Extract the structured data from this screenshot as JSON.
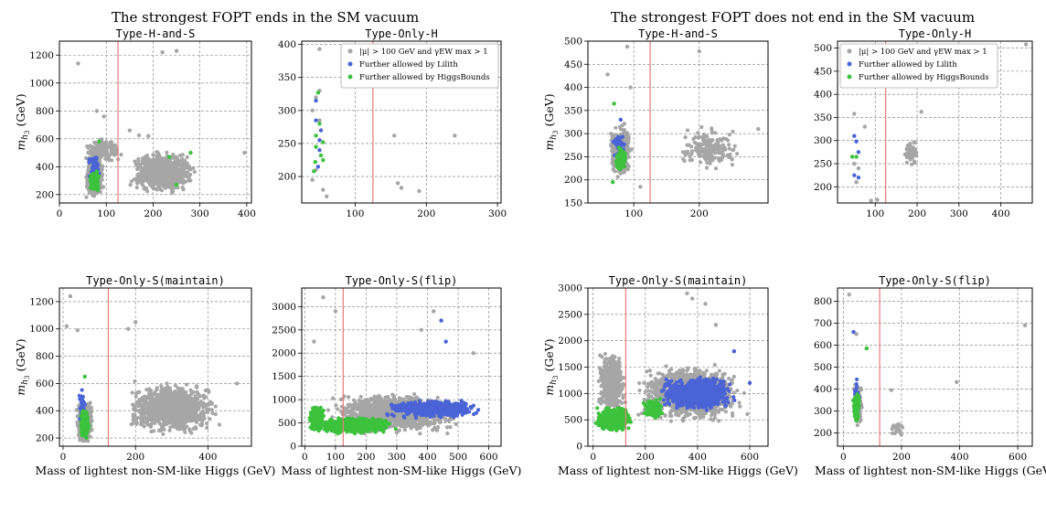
{
  "figure": {
    "left_title": "The strongest FOPT ends in the SM vacuum",
    "right_title": "The strongest FOPT does not end in the SM vacuum",
    "xlabel": "Mass of lightest non-SM-like Higgs (GeV)",
    "ylabel_main": "m",
    "ylabel_sub": "h",
    "ylabel_sub2": "3",
    "ylabel_unit": " (GeV)"
  },
  "legend_items": [
    {
      "text": "|μ| > 100 GeV and γEW max > 1",
      "color": "#a6a6a6"
    },
    {
      "text": "Further allowed by Lilith",
      "color": "#4a63d6"
    },
    {
      "text": "Further allowed by HiggsBounds",
      "color": "#3cc23c"
    }
  ],
  "colors": {
    "all": "#a6a6a6",
    "lilith": "#4a63d6",
    "hb": "#3cc23c",
    "sm_line": "#e87a7a",
    "grid": "#7a7a7a"
  },
  "chart_data": [
    {
      "type": "scatter",
      "panel": "L-TL",
      "title": "Type-H-and-S",
      "xlim": [
        0,
        410
      ],
      "ylim": [
        140,
        1300
      ],
      "xticks": [
        0,
        100,
        200,
        300,
        400
      ],
      "yticks": [
        200,
        400,
        600,
        800,
        1000,
        1200
      ],
      "sm_line_x": 125,
      "legend": "",
      "clusters": [
        {
          "s": "all",
          "n": 520,
          "cx": 75,
          "cy": 330,
          "rx": 22,
          "ry": 180
        },
        {
          "s": "all",
          "n": 900,
          "cx": 220,
          "cy": 360,
          "rx": 80,
          "ry": 170
        },
        {
          "s": "all",
          "n": 160,
          "cx": 90,
          "cy": 520,
          "rx": 50,
          "ry": 110
        },
        {
          "s": "lilith",
          "n": 55,
          "cx": 75,
          "cy": 380,
          "rx": 14,
          "ry": 140
        },
        {
          "s": "hb",
          "n": 230,
          "cx": 75,
          "cy": 300,
          "rx": 12,
          "ry": 85
        }
      ],
      "points": [
        {
          "x": 40,
          "y": 1140,
          "s": "all"
        },
        {
          "x": 220,
          "y": 1220,
          "s": "all"
        },
        {
          "x": 250,
          "y": 1230,
          "s": "all"
        },
        {
          "x": 80,
          "y": 800,
          "s": "all"
        },
        {
          "x": 95,
          "y": 760,
          "s": "all"
        },
        {
          "x": 190,
          "y": 620,
          "s": "all"
        },
        {
          "x": 170,
          "y": 625,
          "s": "all"
        },
        {
          "x": 150,
          "y": 660,
          "s": "all"
        },
        {
          "x": 85,
          "y": 580,
          "s": "hb"
        },
        {
          "x": 235,
          "y": 470,
          "s": "hb"
        },
        {
          "x": 280,
          "y": 500,
          "s": "hb"
        },
        {
          "x": 250,
          "y": 270,
          "s": "hb"
        },
        {
          "x": 395,
          "y": 500,
          "s": "all"
        }
      ]
    },
    {
      "type": "scatter",
      "panel": "L-TR",
      "title": "Type-Only-H",
      "xlim": [
        25,
        305
      ],
      "ylim": [
        160,
        405
      ],
      "xticks": [
        100,
        200,
        300
      ],
      "yticks": [
        200,
        250,
        300,
        350,
        400
      ],
      "sm_line_x": 125,
      "legend": "top-right",
      "clusters": [],
      "points": [
        {
          "x": 50,
          "y": 393,
          "s": "all"
        },
        {
          "x": 40,
          "y": 195,
          "s": "all"
        },
        {
          "x": 45,
          "y": 210,
          "s": "all"
        },
        {
          "x": 55,
          "y": 180,
          "s": "all"
        },
        {
          "x": 60,
          "y": 170,
          "s": "all"
        },
        {
          "x": 40,
          "y": 300,
          "s": "all"
        },
        {
          "x": 45,
          "y": 320,
          "s": "all"
        },
        {
          "x": 50,
          "y": 330,
          "s": "all"
        },
        {
          "x": 50,
          "y": 285,
          "s": "all"
        },
        {
          "x": 155,
          "y": 262,
          "s": "all"
        },
        {
          "x": 160,
          "y": 190,
          "s": "all"
        },
        {
          "x": 165,
          "y": 183,
          "s": "all"
        },
        {
          "x": 190,
          "y": 178,
          "s": "all"
        },
        {
          "x": 240,
          "y": 262,
          "s": "all"
        },
        {
          "x": 295,
          "y": 342,
          "s": "all"
        },
        {
          "x": 48,
          "y": 327,
          "s": "hb"
        },
        {
          "x": 45,
          "y": 315,
          "s": "lilith"
        },
        {
          "x": 45,
          "y": 285,
          "s": "lilith"
        },
        {
          "x": 50,
          "y": 280,
          "s": "hb"
        },
        {
          "x": 52,
          "y": 270,
          "s": "lilith"
        },
        {
          "x": 45,
          "y": 262,
          "s": "hb"
        },
        {
          "x": 50,
          "y": 255,
          "s": "lilith"
        },
        {
          "x": 55,
          "y": 252,
          "s": "hb"
        },
        {
          "x": 45,
          "y": 245,
          "s": "hb"
        },
        {
          "x": 50,
          "y": 240,
          "s": "lilith"
        },
        {
          "x": 52,
          "y": 232,
          "s": "hb"
        },
        {
          "x": 44,
          "y": 222,
          "s": "hb"
        },
        {
          "x": 48,
          "y": 215,
          "s": "lilith"
        },
        {
          "x": 42,
          "y": 208,
          "s": "hb"
        },
        {
          "x": 55,
          "y": 225,
          "s": "hb"
        }
      ]
    },
    {
      "type": "scatter",
      "panel": "L-BL",
      "title": "Type-Only-S(maintain)",
      "xlim": [
        -10,
        520
      ],
      "ylim": [
        140,
        1300
      ],
      "xticks": [
        0,
        200,
        400
      ],
      "yticks": [
        200,
        400,
        600,
        800,
        1000,
        1200
      ],
      "sm_line_x": 125,
      "legend": "",
      "clusters": [
        {
          "s": "all",
          "n": 500,
          "cx": 60,
          "cy": 320,
          "rx": 25,
          "ry": 190
        },
        {
          "s": "all",
          "n": 1000,
          "cx": 300,
          "cy": 420,
          "rx": 150,
          "ry": 220
        },
        {
          "s": "lilith",
          "n": 40,
          "cx": 55,
          "cy": 420,
          "rx": 12,
          "ry": 170
        },
        {
          "s": "hb",
          "n": 300,
          "cx": 60,
          "cy": 300,
          "rx": 14,
          "ry": 120
        }
      ],
      "points": [
        {
          "x": 20,
          "y": 1240,
          "s": "all"
        },
        {
          "x": 10,
          "y": 1020,
          "s": "all"
        },
        {
          "x": 40,
          "y": 990,
          "s": "all"
        },
        {
          "x": 200,
          "y": 1050,
          "s": "all"
        },
        {
          "x": 180,
          "y": 1000,
          "s": "all"
        },
        {
          "x": 60,
          "y": 650,
          "s": "hb"
        },
        {
          "x": 480,
          "y": 600,
          "s": "all"
        }
      ]
    },
    {
      "type": "scatter",
      "panel": "L-BR",
      "title": "Type-Only-S(flip)",
      "xlim": [
        -10,
        640
      ],
      "ylim": [
        0,
        3400
      ],
      "xticks": [
        0,
        100,
        200,
        300,
        400,
        500,
        600
      ],
      "yticks": [
        0,
        500,
        1000,
        1500,
        2000,
        2500,
        3000
      ],
      "sm_line_x": 125,
      "legend": "",
      "clusters": [
        {
          "s": "all",
          "n": 1200,
          "cx": 300,
          "cy": 700,
          "rx": 250,
          "ry": 500
        },
        {
          "s": "lilith",
          "n": 600,
          "cx": 420,
          "cy": 800,
          "rx": 170,
          "ry": 220
        },
        {
          "s": "hb",
          "n": 800,
          "cx": 160,
          "cy": 450,
          "rx": 150,
          "ry": 200
        },
        {
          "s": "hb",
          "n": 250,
          "cx": 40,
          "cy": 600,
          "rx": 30,
          "ry": 350
        }
      ],
      "points": [
        {
          "x": 60,
          "y": 3200,
          "s": "all"
        },
        {
          "x": 100,
          "y": 2900,
          "s": "all"
        },
        {
          "x": 420,
          "y": 2900,
          "s": "all"
        },
        {
          "x": 445,
          "y": 2700,
          "s": "lilith"
        },
        {
          "x": 460,
          "y": 2250,
          "s": "lilith"
        },
        {
          "x": 550,
          "y": 2000,
          "s": "all"
        },
        {
          "x": 380,
          "y": 2500,
          "s": "all"
        },
        {
          "x": 30,
          "y": 2250,
          "s": "all"
        }
      ]
    },
    {
      "type": "scatter",
      "panel": "R-TL",
      "title": "Type-H-and-S",
      "xlim": [
        30,
        305
      ],
      "ylim": [
        150,
        500
      ],
      "xticks": [
        100,
        200
      ],
      "yticks": [
        150,
        200,
        250,
        300,
        350,
        400,
        450,
        500
      ],
      "sm_line_x": 125,
      "legend": "",
      "clusters": [
        {
          "s": "all",
          "n": 400,
          "cx": 80,
          "cy": 265,
          "rx": 20,
          "ry": 65
        },
        {
          "s": "all",
          "n": 180,
          "cx": 215,
          "cy": 270,
          "rx": 55,
          "ry": 60
        },
        {
          "s": "lilith",
          "n": 40,
          "cx": 78,
          "cy": 275,
          "rx": 12,
          "ry": 40
        },
        {
          "s": "hb",
          "n": 70,
          "cx": 80,
          "cy": 245,
          "rx": 12,
          "ry": 35
        }
      ],
      "points": [
        {
          "x": 90,
          "y": 488,
          "s": "all"
        },
        {
          "x": 200,
          "y": 478,
          "s": "all"
        },
        {
          "x": 60,
          "y": 428,
          "s": "all"
        },
        {
          "x": 95,
          "y": 400,
          "s": "all"
        },
        {
          "x": 70,
          "y": 365,
          "s": "hb"
        },
        {
          "x": 80,
          "y": 330,
          "s": "lilith"
        },
        {
          "x": 68,
          "y": 195,
          "s": "hb"
        },
        {
          "x": 110,
          "y": 185,
          "s": "all"
        },
        {
          "x": 290,
          "y": 310,
          "s": "all"
        }
      ]
    },
    {
      "type": "scatter",
      "panel": "R-TR",
      "title": "Type-Only-H",
      "xlim": [
        10,
        475
      ],
      "ylim": [
        165,
        515
      ],
      "xticks": [
        100,
        200,
        300,
        400
      ],
      "yticks": [
        200,
        250,
        300,
        350,
        400,
        450,
        500
      ],
      "sm_line_x": 125,
      "legend": "top-left",
      "clusters": [
        {
          "s": "all",
          "n": 50,
          "cx": 185,
          "cy": 275,
          "rx": 25,
          "ry": 35
        }
      ],
      "points": [
        {
          "x": 460,
          "y": 508,
          "s": "all"
        },
        {
          "x": 50,
          "y": 358,
          "s": "all"
        },
        {
          "x": 75,
          "y": 330,
          "s": "all"
        },
        {
          "x": 50,
          "y": 310,
          "s": "lilith"
        },
        {
          "x": 55,
          "y": 298,
          "s": "lilith"
        },
        {
          "x": 60,
          "y": 275,
          "s": "lilith"
        },
        {
          "x": 45,
          "y": 265,
          "s": "hb"
        },
        {
          "x": 55,
          "y": 265,
          "s": "hb"
        },
        {
          "x": 50,
          "y": 250,
          "s": "all"
        },
        {
          "x": 60,
          "y": 240,
          "s": "all"
        },
        {
          "x": 50,
          "y": 225,
          "s": "lilith"
        },
        {
          "x": 60,
          "y": 220,
          "s": "lilith"
        },
        {
          "x": 55,
          "y": 210,
          "s": "all"
        },
        {
          "x": 210,
          "y": 362,
          "s": "all"
        },
        {
          "x": 90,
          "y": 170,
          "s": "all"
        },
        {
          "x": 105,
          "y": 172,
          "s": "all"
        }
      ]
    },
    {
      "type": "scatter",
      "panel": "R-BL",
      "title": "Type-Only-S(maintain)",
      "xlim": [
        -20,
        670
      ],
      "ylim": [
        0,
        3000
      ],
      "xticks": [
        0,
        200,
        400,
        600
      ],
      "yticks": [
        0,
        500,
        1000,
        1500,
        2000,
        2500,
        3000
      ],
      "sm_line_x": 125,
      "legend": "",
      "clusters": [
        {
          "s": "all",
          "n": 600,
          "cx": 70,
          "cy": 1200,
          "rx": 60,
          "ry": 650
        },
        {
          "s": "all",
          "n": 1400,
          "cx": 380,
          "cy": 1000,
          "rx": 230,
          "ry": 600
        },
        {
          "s": "lilith",
          "n": 900,
          "cx": 400,
          "cy": 1000,
          "rx": 160,
          "ry": 380
        },
        {
          "s": "hb",
          "n": 900,
          "cx": 80,
          "cy": 520,
          "rx": 75,
          "ry": 260
        },
        {
          "s": "hb",
          "n": 200,
          "cx": 230,
          "cy": 700,
          "rx": 40,
          "ry": 220
        }
      ],
      "points": [
        {
          "x": 360,
          "y": 2900,
          "s": "all"
        },
        {
          "x": 380,
          "y": 2800,
          "s": "all"
        },
        {
          "x": 470,
          "y": 2300,
          "s": "all"
        },
        {
          "x": 430,
          "y": 2700,
          "s": "all"
        },
        {
          "x": 540,
          "y": 1800,
          "s": "lilith"
        },
        {
          "x": 600,
          "y": 1200,
          "s": "lilith"
        }
      ]
    },
    {
      "type": "scatter",
      "panel": "R-BR",
      "title": "Type-Only-S(flip)",
      "xlim": [
        -20,
        650
      ],
      "ylim": [
        140,
        860
      ],
      "xticks": [
        0,
        200,
        400,
        600
      ],
      "yticks": [
        200,
        300,
        400,
        500,
        600,
        700,
        800
      ],
      "sm_line_x": 125,
      "legend": "",
      "clusters": [
        {
          "s": "all",
          "n": 150,
          "cx": 50,
          "cy": 330,
          "rx": 18,
          "ry": 120
        },
        {
          "s": "hb",
          "n": 110,
          "cx": 45,
          "cy": 320,
          "rx": 14,
          "ry": 95
        },
        {
          "s": "lilith",
          "n": 35,
          "cx": 45,
          "cy": 360,
          "rx": 12,
          "ry": 120
        },
        {
          "s": "all",
          "n": 25,
          "cx": 185,
          "cy": 220,
          "rx": 30,
          "ry": 35
        }
      ],
      "points": [
        {
          "x": 20,
          "y": 830,
          "s": "all"
        },
        {
          "x": 35,
          "y": 660,
          "s": "lilith"
        },
        {
          "x": 45,
          "y": 650,
          "s": "all"
        },
        {
          "x": 80,
          "y": 585,
          "s": "hb"
        },
        {
          "x": 390,
          "y": 432,
          "s": "all"
        },
        {
          "x": 625,
          "y": 690,
          "s": "all"
        },
        {
          "x": 165,
          "y": 395,
          "s": "all"
        }
      ]
    }
  ]
}
